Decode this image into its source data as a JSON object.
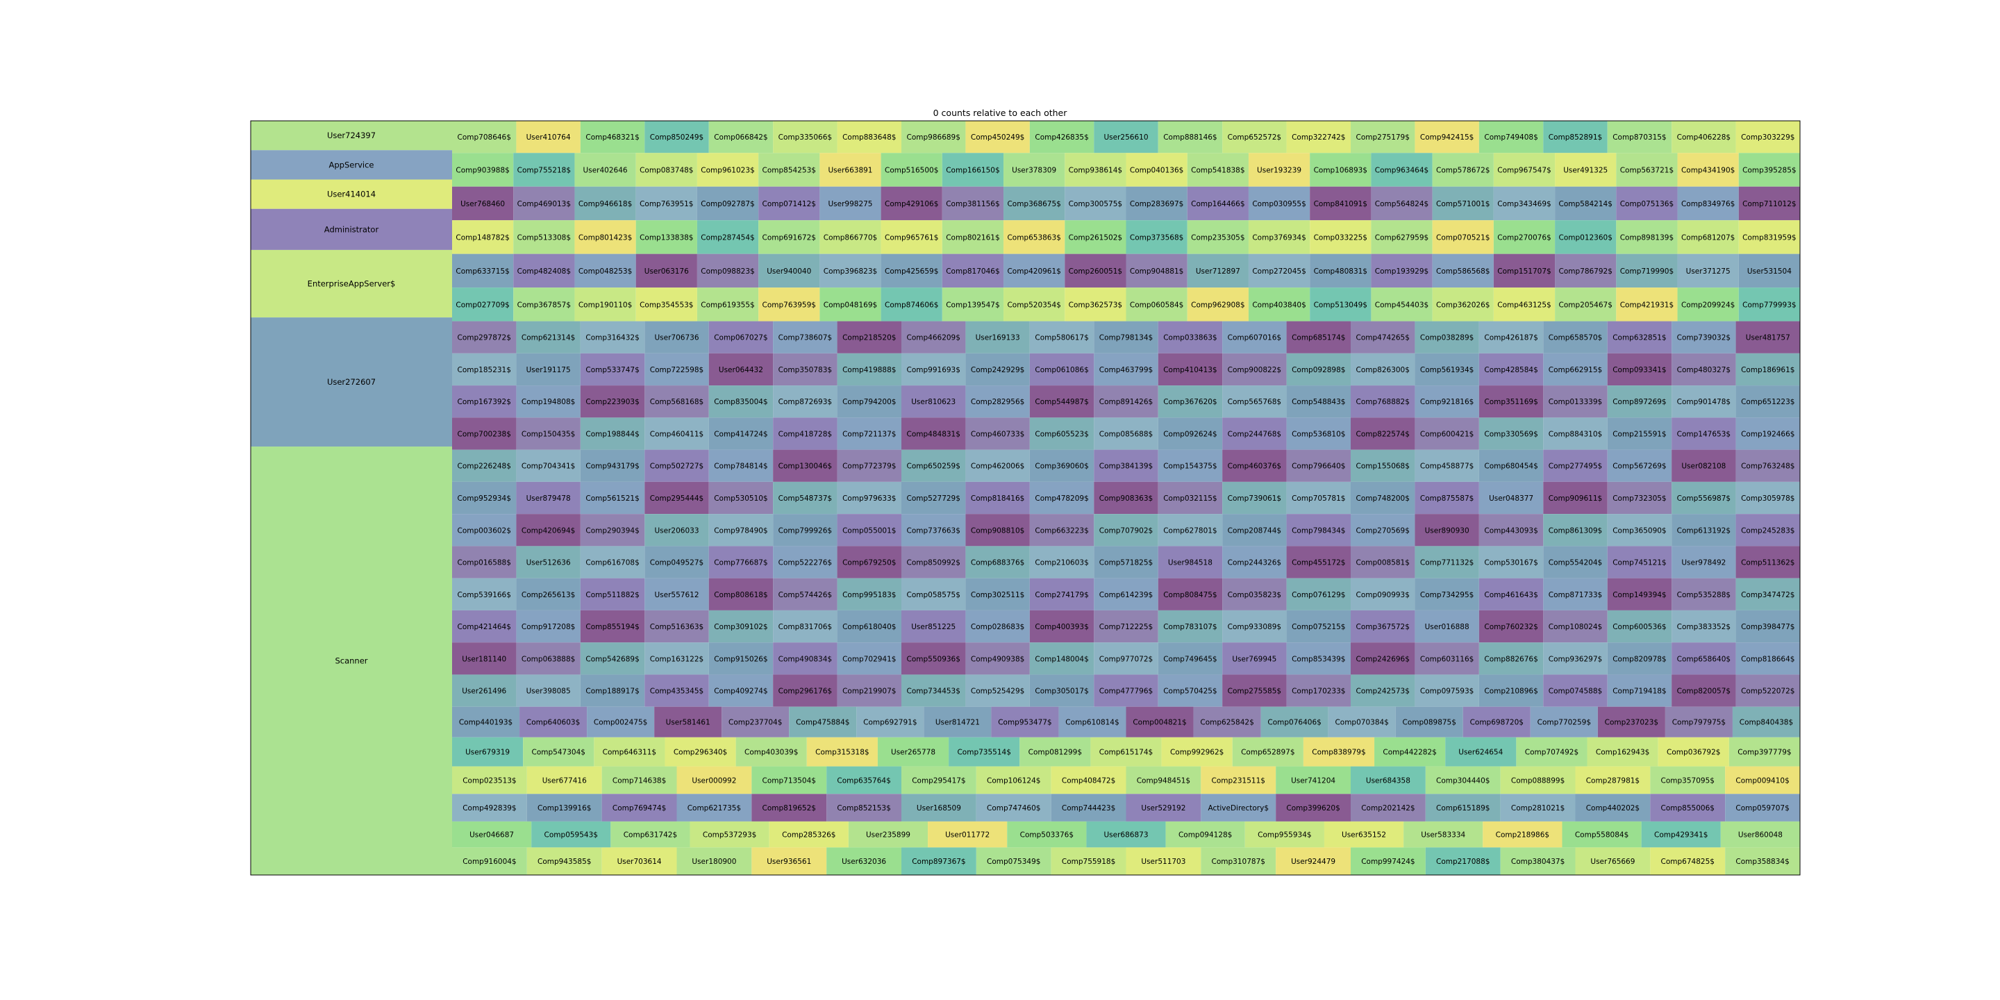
{
  "chart_data": {
    "type": "treemap",
    "title": "0 counts relative to each other",
    "palette": [
      "#b3e38e",
      "#86a3c2",
      "#dfeb7c",
      "#8f83b8",
      "#c8e885",
      "#7fa3bb",
      "#abe291",
      "#8eb3c4",
      "#74c6b1",
      "#7fb1b6",
      "#9adf8f",
      "#9183b0",
      "#ede279",
      "#895b92"
    ],
    "large_tiles": [
      {
        "name": "User724397",
        "value": 1,
        "color": "#b3e38e"
      },
      {
        "name": "AppService",
        "value": 1,
        "color": "#86a3c2"
      },
      {
        "name": "User414014",
        "value": 1,
        "color": "#dfeb7c"
      },
      {
        "name": "Administrator",
        "value": 1.4,
        "color": "#8f83b8"
      },
      {
        "name": "EnterpriseAppServer$",
        "value": 2.3,
        "color": "#c8e885"
      },
      {
        "name": "User272607",
        "value": 4.4,
        "color": "#7fa3bb"
      },
      {
        "name": "Scanner",
        "value": 14.6,
        "color": "#abe291"
      }
    ],
    "small_rows": [
      [
        "Comp708646$",
        "User410764",
        "Comp468321$",
        "Comp850249$",
        "Comp066842$",
        "Comp335066$",
        "Comp883648$",
        "Comp986689$",
        "Comp450249$",
        "Comp426835$",
        "User256610",
        "Comp888146$",
        "Comp652572$",
        "Comp322742$",
        "Comp275179$",
        "Comp942415$",
        "Comp749408$",
        "Comp852891$",
        "Comp870315$",
        "Comp406228$",
        "Comp303229$"
      ],
      [
        "Comp903988$",
        "Comp755218$",
        "User402646",
        "Comp083748$",
        "Comp961023$",
        "Comp854253$",
        "User663891",
        "Comp516500$",
        "Comp166150$",
        "User378309",
        "Comp938614$",
        "Comp040136$",
        "Comp541838$",
        "User193239",
        "Comp106893$",
        "Comp963464$",
        "Comp578672$",
        "Comp967547$",
        "User491325",
        "Comp563721$",
        "Comp434190$",
        "Comp395285$"
      ],
      [
        "User768460",
        "Comp469013$",
        "Comp946618$",
        "Comp763951$",
        "Comp092787$",
        "Comp071412$",
        "User998275",
        "Comp429106$",
        "Comp381156$",
        "Comp368675$",
        "Comp300575$",
        "Comp283697$",
        "Comp164466$",
        "Comp030955$",
        "Comp841091$",
        "Comp564824$",
        "Comp571001$",
        "Comp343469$",
        "Comp584214$",
        "Comp075136$",
        "Comp834976$",
        "Comp711012$"
      ],
      [
        "Comp148782$",
        "Comp513308$",
        "Comp801423$",
        "Comp133838$",
        "Comp287454$",
        "Comp691672$",
        "Comp866770$",
        "Comp965761$",
        "Comp802161$",
        "Comp653863$",
        "Comp261502$",
        "Comp373568$",
        "Comp235305$",
        "Comp376934$",
        "Comp033225$",
        "Comp627959$",
        "Comp070521$",
        "Comp270076$",
        "Comp012360$",
        "Comp898139$",
        "Comp681207$",
        "Comp831959$"
      ],
      [
        "Comp633715$",
        "Comp482408$",
        "Comp048253$",
        "User063176",
        "Comp098823$",
        "User940040",
        "Comp396823$",
        "Comp425659$",
        "Comp817046$",
        "Comp420961$",
        "Comp260051$",
        "Comp904881$",
        "User712897",
        "Comp272045$",
        "Comp480831$",
        "Comp193929$",
        "Comp586568$",
        "Comp151707$",
        "Comp786792$",
        "Comp719990$",
        "User371275",
        "User531504"
      ],
      [
        "Comp027709$",
        "Comp367857$",
        "Comp190110$",
        "Comp354553$",
        "Comp619355$",
        "Comp763959$",
        "Comp048169$",
        "Comp874606$",
        "Comp139547$",
        "Comp520354$",
        "Comp362573$",
        "Comp060584$",
        "Comp962908$",
        "Comp403840$",
        "Comp513049$",
        "Comp454403$",
        "Comp362026$",
        "Comp463125$",
        "Comp205467$",
        "Comp421931$",
        "Comp209924$",
        "Comp779993$"
      ],
      [
        "Comp297872$",
        "Comp621314$",
        "Comp316432$",
        "User706736",
        "Comp067027$",
        "Comp738607$",
        "Comp218520$",
        "Comp466209$",
        "User169133",
        "Comp580617$",
        "Comp798134$",
        "Comp033863$",
        "Comp607016$",
        "Comp685174$",
        "Comp474265$",
        "Comp038289$",
        "Comp426187$",
        "Comp658570$",
        "Comp632851$",
        "Comp739032$",
        "User481757"
      ],
      [
        "Comp185231$",
        "User191175",
        "Comp533747$",
        "Comp722598$",
        "User064432",
        "Comp350783$",
        "Comp419888$",
        "Comp991693$",
        "Comp242929$",
        "Comp061086$",
        "Comp463799$",
        "Comp410413$",
        "Comp900822$",
        "Comp092898$",
        "Comp826300$",
        "Comp561934$",
        "Comp428584$",
        "Comp662915$",
        "Comp093341$",
        "Comp480327$",
        "Comp186961$"
      ],
      [
        "Comp167392$",
        "Comp194808$",
        "Comp223903$",
        "Comp568168$",
        "Comp835004$",
        "Comp872693$",
        "Comp794200$",
        "User810623",
        "Comp282956$",
        "Comp544987$",
        "Comp891426$",
        "Comp367620$",
        "Comp565768$",
        "Comp548843$",
        "Comp768882$",
        "Comp921816$",
        "Comp351169$",
        "Comp013339$",
        "Comp897269$",
        "Comp901478$",
        "Comp651223$"
      ],
      [
        "Comp700238$",
        "Comp150435$",
        "Comp198844$",
        "Comp460411$",
        "Comp414724$",
        "Comp418728$",
        "Comp721137$",
        "Comp484831$",
        "Comp460733$",
        "Comp605523$",
        "Comp085688$",
        "Comp092624$",
        "Comp244768$",
        "Comp536810$",
        "Comp822574$",
        "Comp600421$",
        "Comp330569$",
        "Comp884310$",
        "Comp215591$",
        "Comp147653$",
        "Comp192466$"
      ],
      [
        "Comp226248$",
        "Comp704341$",
        "Comp943179$",
        "Comp502727$",
        "Comp784814$",
        "Comp130046$",
        "Comp772379$",
        "Comp650259$",
        "Comp462006$",
        "Comp369060$",
        "Comp384139$",
        "Comp154375$",
        "Comp460376$",
        "Comp796640$",
        "Comp155068$",
        "Comp458877$",
        "Comp680454$",
        "Comp277495$",
        "Comp567269$",
        "User082108",
        "Comp763248$"
      ],
      [
        "Comp952934$",
        "User879478",
        "Comp561521$",
        "Comp295444$",
        "Comp530510$",
        "Comp548737$",
        "Comp979633$",
        "Comp527729$",
        "Comp818416$",
        "Comp478209$",
        "Comp908363$",
        "Comp032115$",
        "Comp739061$",
        "Comp705781$",
        "Comp748200$",
        "Comp875587$",
        "User048377",
        "Comp909611$",
        "Comp732305$",
        "Comp556987$",
        "Comp305978$"
      ],
      [
        "Comp003602$",
        "Comp420694$",
        "Comp290394$",
        "User206033",
        "Comp978490$",
        "Comp799926$",
        "Comp055001$",
        "Comp737663$",
        "Comp908810$",
        "Comp663223$",
        "Comp707902$",
        "Comp627801$",
        "Comp208744$",
        "Comp798434$",
        "Comp270569$",
        "User890930",
        "Comp443093$",
        "Comp861309$",
        "Comp365090$",
        "Comp613192$",
        "Comp245283$"
      ],
      [
        "Comp016588$",
        "User512636",
        "Comp616708$",
        "Comp049527$",
        "Comp776687$",
        "Comp522276$",
        "Comp679250$",
        "Comp850992$",
        "Comp688376$",
        "Comp210603$",
        "Comp571825$",
        "User984518",
        "Comp244326$",
        "Comp455172$",
        "Comp008581$",
        "Comp771132$",
        "Comp530167$",
        "Comp554204$",
        "Comp745121$",
        "User978492",
        "Comp511362$"
      ],
      [
        "Comp539166$",
        "Comp265613$",
        "Comp511882$",
        "User557612",
        "Comp808618$",
        "Comp574426$",
        "Comp995183$",
        "Comp058575$",
        "Comp302511$",
        "Comp274179$",
        "Comp614239$",
        "Comp808475$",
        "Comp035823$",
        "Comp076129$",
        "Comp090993$",
        "Comp734295$",
        "Comp461643$",
        "Comp871733$",
        "Comp149394$",
        "Comp535288$",
        "Comp347472$"
      ],
      [
        "Comp421464$",
        "Comp917208$",
        "Comp855194$",
        "Comp516363$",
        "Comp309102$",
        "Comp831706$",
        "Comp618040$",
        "User851225",
        "Comp028683$",
        "Comp400393$",
        "Comp712225$",
        "Comp783107$",
        "Comp933089$",
        "Comp075215$",
        "Comp367572$",
        "User016888",
        "Comp760232$",
        "Comp108024$",
        "Comp600536$",
        "Comp383352$",
        "Comp398477$"
      ],
      [
        "User181140",
        "Comp063888$",
        "Comp542689$",
        "Comp163122$",
        "Comp915026$",
        "Comp490834$",
        "Comp702941$",
        "Comp550936$",
        "Comp490938$",
        "Comp148004$",
        "Comp977072$",
        "Comp749645$",
        "User769945",
        "Comp853439$",
        "Comp242696$",
        "Comp603116$",
        "Comp882676$",
        "Comp936297$",
        "Comp820978$",
        "Comp658640$",
        "Comp818664$"
      ],
      [
        "User261496",
        "User398085",
        "Comp188917$",
        "Comp435345$",
        "Comp409274$",
        "Comp296176$",
        "Comp219907$",
        "Comp734453$",
        "Comp525429$",
        "Comp305017$",
        "Comp477796$",
        "Comp570425$",
        "Comp275585$",
        "Comp170233$",
        "Comp242573$",
        "Comp097593$",
        "Comp210896$",
        "Comp074588$",
        "Comp719418$",
        "Comp820057$",
        "Comp522072$"
      ],
      [
        "Comp440193$",
        "Comp640603$",
        "Comp002475$",
        "User581461",
        "Comp237704$",
        "Comp475884$",
        "Comp692791$",
        "User814721",
        "Comp953477$",
        "Comp610814$",
        "Comp004821$",
        "Comp625842$",
        "Comp076406$",
        "Comp070384$",
        "Comp089875$",
        "Comp698720$",
        "Comp770259$",
        "Comp237023$",
        "Comp797975$",
        "Comp840438$"
      ],
      [
        "User679319",
        "Comp547304$",
        "Comp646311$",
        "Comp296340$",
        "Comp403039$",
        "Comp315318$",
        "User265778",
        "Comp735514$",
        "Comp081299$",
        "Comp615174$",
        "Comp992962$",
        "Comp652897$",
        "Comp838979$",
        "Comp442282$",
        "User624654",
        "Comp707492$",
        "Comp162943$",
        "Comp036792$",
        "Comp397779$"
      ],
      [
        "Comp023513$",
        "User677416",
        "Comp714638$",
        "User000992",
        "Comp713504$",
        "Comp635764$",
        "Comp295417$",
        "Comp106124$",
        "Comp408472$",
        "Comp948451$",
        "Comp231511$",
        "User741204",
        "User684358",
        "Comp304440$",
        "Comp088899$",
        "Comp287981$",
        "Comp357095$",
        "Comp009410$"
      ],
      [
        "Comp492839$",
        "Comp139916$",
        "Comp769474$",
        "Comp621735$",
        "Comp819652$",
        "Comp852153$",
        "User168509",
        "Comp747460$",
        "Comp744423$",
        "User529192",
        "ActiveDirectory$",
        "Comp399620$",
        "Comp202142$",
        "Comp615189$",
        "Comp281021$",
        "Comp440202$",
        "Comp855006$",
        "Comp059707$"
      ],
      [
        "User046687",
        "Comp059543$",
        "Comp631742$",
        "Comp537293$",
        "Comp285326$",
        "User235899",
        "User011772",
        "Comp503376$",
        "User686873",
        "Comp094128$",
        "Comp955934$",
        "User635152",
        "User583334",
        "Comp218986$",
        "Comp558084$",
        "Comp429341$",
        "User860048"
      ],
      [
        "Comp916004$",
        "Comp943585$",
        "User703614",
        "User180900",
        "User936561",
        "User632036",
        "Comp897367$",
        "Comp075349$",
        "Comp755918$",
        "User511703",
        "Comp310787$",
        "User924479",
        "Comp997424$",
        "Comp217088$",
        "Comp380437$",
        "User765669",
        "Comp674825$",
        "Comp358834$"
      ]
    ]
  }
}
